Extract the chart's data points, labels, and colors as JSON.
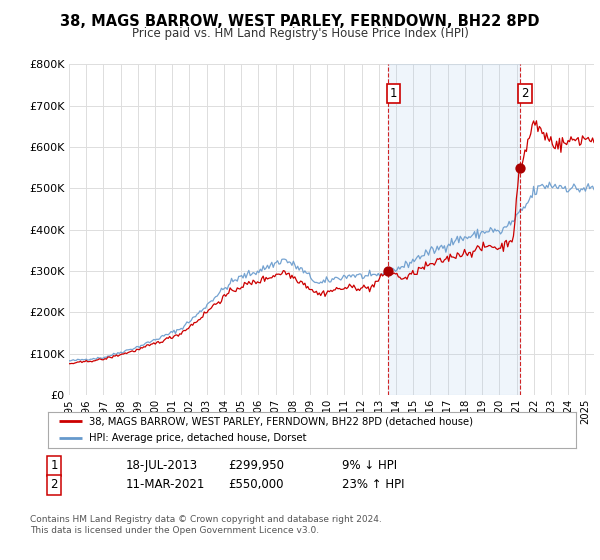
{
  "title": "38, MAGS BARROW, WEST PARLEY, FERNDOWN, BH22 8PD",
  "subtitle": "Price paid vs. HM Land Registry's House Price Index (HPI)",
  "ylim": [
    0,
    800000
  ],
  "xlim_start": 1995.0,
  "xlim_end": 2025.5,
  "ytick_labels": [
    "£0",
    "£100K",
    "£200K",
    "£300K",
    "£400K",
    "£500K",
    "£600K",
    "£700K",
    "£800K"
  ],
  "ytick_values": [
    0,
    100000,
    200000,
    300000,
    400000,
    500000,
    600000,
    700000,
    800000
  ],
  "fig_bg_color": "#ffffff",
  "plot_bg_color": "#ffffff",
  "grid_color": "#dddddd",
  "shade_color": "#ddeeff",
  "sale1_date": 2013.54,
  "sale1_price": 299950,
  "sale1_label": "1",
  "sale2_date": 2021.19,
  "sale2_price": 550000,
  "sale2_label": "2",
  "legend_line1": "38, MAGS BARROW, WEST PARLEY, FERNDOWN, BH22 8PD (detached house)",
  "legend_line2": "HPI: Average price, detached house, Dorset",
  "table_row1": [
    "1",
    "18-JUL-2013",
    "£299,950",
    "9% ↓ HPI"
  ],
  "table_row2": [
    "2",
    "11-MAR-2021",
    "£550,000",
    "23% ↑ HPI"
  ],
  "footer1": "Contains HM Land Registry data © Crown copyright and database right 2024.",
  "footer2": "This data is licensed under the Open Government Licence v3.0.",
  "price_line_color": "#cc0000",
  "hpi_line_color": "#6699cc",
  "sale_dot_color": "#aa0000",
  "vline_color": "#cc0000"
}
